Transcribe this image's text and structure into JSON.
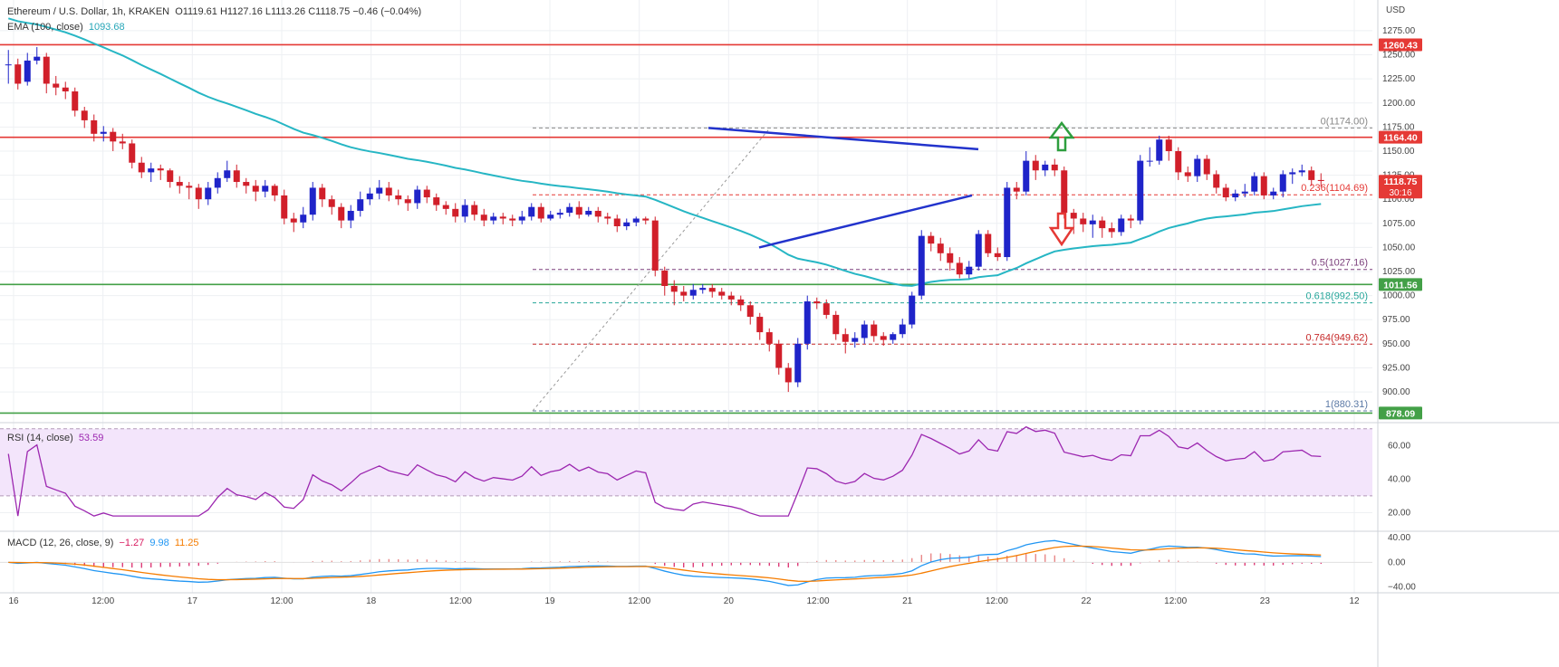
{
  "legend": {
    "symbol": "Ethereum / U.S. Dollar, 1h, KRAKEN",
    "ohlc": "O1119.61  H1127.16  L1113.26  C1118.75  −0.46 (−0.04%)",
    "ema_label": "EMA (100, close)",
    "ema_value": "1093.68",
    "rsi_label": "RSI (14, close)",
    "rsi_value": "53.59",
    "macd_label": "MACD (12, 26, close, 9)",
    "macd_val1": "−1.27",
    "macd_val2": "9.98",
    "macd_val3": "11.25"
  },
  "chart_data": {
    "type": "candlestick",
    "currency": "USD",
    "price_axis": {
      "ylim": [
        870,
        1305
      ],
      "ticks": [
        "1275.00",
        "1250.00",
        "1225.00",
        "1200.00",
        "1175.00",
        "1150.00",
        "1125.00",
        "1100.00",
        "1075.00",
        "1050.00",
        "1025.00",
        "1000.00",
        "975.00",
        "950.00",
        "925.00",
        "900.00"
      ]
    },
    "time_axis": {
      "labels": [
        "16",
        "12:00",
        "17",
        "12:00",
        "18",
        "12:00",
        "19",
        "12:00",
        "20",
        "12:00",
        "21",
        "12:00",
        "22",
        "12:00",
        "23",
        "12"
      ]
    },
    "price_tags": [
      {
        "value": "1260.43",
        "color": "#e53935"
      },
      {
        "value": "1164.40",
        "color": "#e53935"
      },
      {
        "value": "1118.75",
        "color": "#e53935",
        "countdown": "30:16"
      },
      {
        "value": "1011.56",
        "color": "#43a047"
      },
      {
        "value": "878.09",
        "color": "#43a047"
      }
    ],
    "horizontal_lines": [
      {
        "price": 1260.43,
        "color": "#e53935"
      },
      {
        "price": 1164.4,
        "color": "#e53935"
      },
      {
        "price": 1011.56,
        "color": "#43a047"
      },
      {
        "price": 878.09,
        "color": "#43a047"
      }
    ],
    "fibonacci": [
      {
        "label": "0(1174.00)",
        "price": 1174.0,
        "color": "#888888"
      },
      {
        "label": "0.236(1104.69)",
        "price": 1104.69,
        "color": "#e53935"
      },
      {
        "label": "0.5(1027.16)",
        "price": 1027.16,
        "color": "#7b3f7b"
      },
      {
        "label": "0.618(992.50)",
        "price": 992.5,
        "color": "#26a69a"
      },
      {
        "label": "0.764(949.62)",
        "price": 949.62,
        "color": "#c62828"
      },
      {
        "label": "1(880.31)",
        "price": 880.31,
        "color": "#5c7aa6"
      }
    ],
    "triangle_upper_line": [
      [
        1174,
        78.5
      ],
      [
        1152,
        107.5
      ]
    ],
    "triangle_lower_line": [
      [
        1050,
        83.5
      ],
      [
        1104,
        107.5
      ]
    ],
    "candles": [
      [
        1240,
        1240,
        1255,
        1220
      ],
      [
        1240,
        1220,
        1246,
        1214
      ],
      [
        1222,
        1244,
        1252,
        1218
      ],
      [
        1244,
        1248,
        1258,
        1240
      ],
      [
        1248,
        1220,
        1252,
        1210
      ],
      [
        1220,
        1216,
        1228,
        1208
      ],
      [
        1216,
        1212,
        1222,
        1204
      ],
      [
        1212,
        1192,
        1216,
        1186
      ],
      [
        1192,
        1182,
        1196,
        1174
      ],
      [
        1182,
        1168,
        1188,
        1160
      ],
      [
        1168,
        1170,
        1176,
        1160
      ],
      [
        1170,
        1160,
        1174,
        1150
      ],
      [
        1160,
        1158,
        1168,
        1152
      ],
      [
        1158,
        1138,
        1162,
        1132
      ],
      [
        1138,
        1128,
        1144,
        1122
      ],
      [
        1128,
        1132,
        1138,
        1118
      ],
      [
        1132,
        1130,
        1136,
        1120
      ],
      [
        1130,
        1118,
        1132,
        1112
      ],
      [
        1118,
        1114,
        1124,
        1106
      ],
      [
        1114,
        1112,
        1118,
        1100
      ],
      [
        1112,
        1100,
        1116,
        1090
      ],
      [
        1100,
        1112,
        1118,
        1094
      ],
      [
        1112,
        1122,
        1128,
        1106
      ],
      [
        1122,
        1130,
        1140,
        1118
      ],
      [
        1130,
        1118,
        1136,
        1112
      ],
      [
        1118,
        1114,
        1122,
        1106
      ],
      [
        1114,
        1108,
        1120,
        1098
      ],
      [
        1108,
        1114,
        1120,
        1102
      ],
      [
        1114,
        1104,
        1116,
        1098
      ],
      [
        1104,
        1080,
        1110,
        1074
      ],
      [
        1080,
        1076,
        1086,
        1066
      ],
      [
        1076,
        1084,
        1092,
        1070
      ],
      [
        1084,
        1112,
        1118,
        1078
      ],
      [
        1112,
        1100,
        1116,
        1092
      ],
      [
        1100,
        1092,
        1104,
        1084
      ],
      [
        1092,
        1078,
        1096,
        1070
      ],
      [
        1078,
        1088,
        1094,
        1070
      ],
      [
        1088,
        1100,
        1108,
        1082
      ],
      [
        1100,
        1106,
        1112,
        1094
      ],
      [
        1106,
        1112,
        1120,
        1100
      ],
      [
        1112,
        1104,
        1118,
        1098
      ],
      [
        1104,
        1100,
        1110,
        1094
      ],
      [
        1100,
        1096,
        1104,
        1088
      ],
      [
        1096,
        1110,
        1114,
        1090
      ],
      [
        1110,
        1102,
        1114,
        1096
      ],
      [
        1102,
        1094,
        1106,
        1088
      ],
      [
        1094,
        1090,
        1098,
        1084
      ],
      [
        1090,
        1082,
        1096,
        1076
      ],
      [
        1082,
        1094,
        1100,
        1076
      ],
      [
        1094,
        1084,
        1098,
        1078
      ],
      [
        1084,
        1078,
        1090,
        1072
      ],
      [
        1078,
        1082,
        1086,
        1074
      ],
      [
        1082,
        1080,
        1086,
        1074
      ],
      [
        1080,
        1078,
        1084,
        1072
      ],
      [
        1078,
        1082,
        1088,
        1074
      ],
      [
        1082,
        1092,
        1096,
        1078
      ],
      [
        1092,
        1080,
        1096,
        1076
      ],
      [
        1080,
        1084,
        1088,
        1078
      ],
      [
        1084,
        1086,
        1090,
        1080
      ],
      [
        1086,
        1092,
        1096,
        1082
      ],
      [
        1092,
        1084,
        1098,
        1080
      ],
      [
        1084,
        1088,
        1092,
        1082
      ],
      [
        1088,
        1082,
        1092,
        1076
      ],
      [
        1082,
        1080,
        1086,
        1074
      ],
      [
        1080,
        1072,
        1084,
        1066
      ],
      [
        1072,
        1076,
        1080,
        1068
      ],
      [
        1076,
        1080,
        1082,
        1072
      ],
      [
        1080,
        1078,
        1082,
        1074
      ],
      [
        1078,
        1026,
        1082,
        1020
      ],
      [
        1026,
        1010,
        1030,
        1000
      ],
      [
        1010,
        1004,
        1016,
        990
      ],
      [
        1004,
        1000,
        1010,
        994
      ],
      [
        1000,
        1006,
        1012,
        996
      ],
      [
        1006,
        1008,
        1012,
        1002
      ],
      [
        1008,
        1004,
        1012,
        998
      ],
      [
        1004,
        1000,
        1008,
        996
      ],
      [
        1000,
        996,
        1004,
        990
      ],
      [
        996,
        990,
        1000,
        984
      ],
      [
        990,
        978,
        994,
        970
      ],
      [
        978,
        962,
        982,
        954
      ],
      [
        962,
        950,
        966,
        942
      ],
      [
        950,
        925,
        954,
        918
      ],
      [
        925,
        910,
        930,
        900
      ],
      [
        910,
        950,
        956,
        905
      ],
      [
        950,
        994,
        1000,
        944
      ],
      [
        994,
        992,
        998,
        986
      ],
      [
        992,
        980,
        996,
        976
      ],
      [
        980,
        960,
        984,
        954
      ],
      [
        960,
        952,
        966,
        940
      ],
      [
        952,
        956,
        962,
        946
      ],
      [
        956,
        970,
        974,
        950
      ],
      [
        970,
        958,
        974,
        952
      ],
      [
        958,
        954,
        962,
        948
      ],
      [
        954,
        960,
        962,
        950
      ],
      [
        960,
        970,
        976,
        956
      ],
      [
        970,
        1000,
        1004,
        966
      ],
      [
        1000,
        1062,
        1068,
        996
      ],
      [
        1062,
        1054,
        1066,
        1046
      ],
      [
        1054,
        1044,
        1060,
        1036
      ],
      [
        1044,
        1034,
        1050,
        1026
      ],
      [
        1034,
        1022,
        1040,
        1018
      ],
      [
        1022,
        1030,
        1036,
        1018
      ],
      [
        1030,
        1064,
        1068,
        1026
      ],
      [
        1064,
        1044,
        1068,
        1040
      ],
      [
        1044,
        1040,
        1050,
        1036
      ],
      [
        1040,
        1112,
        1118,
        1036
      ],
      [
        1112,
        1108,
        1118,
        1100
      ],
      [
        1108,
        1140,
        1150,
        1104
      ],
      [
        1140,
        1130,
        1146,
        1120
      ],
      [
        1130,
        1136,
        1140,
        1124
      ],
      [
        1136,
        1130,
        1142,
        1124
      ],
      [
        1130,
        1086,
        1134,
        1080
      ],
      [
        1086,
        1080,
        1090,
        1064
      ],
      [
        1080,
        1074,
        1086,
        1066
      ],
      [
        1074,
        1078,
        1084,
        1060
      ],
      [
        1078,
        1070,
        1082,
        1060
      ],
      [
        1070,
        1066,
        1076,
        1060
      ],
      [
        1066,
        1080,
        1084,
        1062
      ],
      [
        1080,
        1078,
        1084,
        1070
      ],
      [
        1078,
        1140,
        1146,
        1074
      ],
      [
        1140,
        1140,
        1154,
        1134
      ],
      [
        1140,
        1162,
        1166,
        1136
      ],
      [
        1162,
        1150,
        1166,
        1140
      ],
      [
        1150,
        1128,
        1154,
        1120
      ],
      [
        1128,
        1124,
        1134,
        1118
      ],
      [
        1124,
        1142,
        1146,
        1118
      ],
      [
        1142,
        1126,
        1146,
        1120
      ],
      [
        1126,
        1112,
        1130,
        1106
      ],
      [
        1112,
        1102,
        1116,
        1098
      ],
      [
        1102,
        1106,
        1110,
        1098
      ],
      [
        1106,
        1108,
        1116,
        1102
      ],
      [
        1108,
        1124,
        1128,
        1104
      ],
      [
        1124,
        1104,
        1128,
        1100
      ],
      [
        1104,
        1108,
        1112,
        1100
      ],
      [
        1108,
        1126,
        1130,
        1102
      ],
      [
        1126,
        1128,
        1132,
        1116
      ],
      [
        1128,
        1130,
        1136,
        1124
      ],
      [
        1130,
        1120,
        1134,
        1114
      ],
      [
        1120,
        1119,
        1127,
        1113
      ]
    ],
    "rsi": {
      "ylim": [
        10,
        72
      ],
      "ticks": [
        "60.00",
        "40.00",
        "20.00"
      ],
      "overbought": 70,
      "oversold": 30,
      "last": 53.59
    },
    "macd": {
      "ylim": [
        -42,
        46
      ],
      "ticks": [
        "40.00",
        "0.00",
        "−40.00"
      ]
    }
  }
}
